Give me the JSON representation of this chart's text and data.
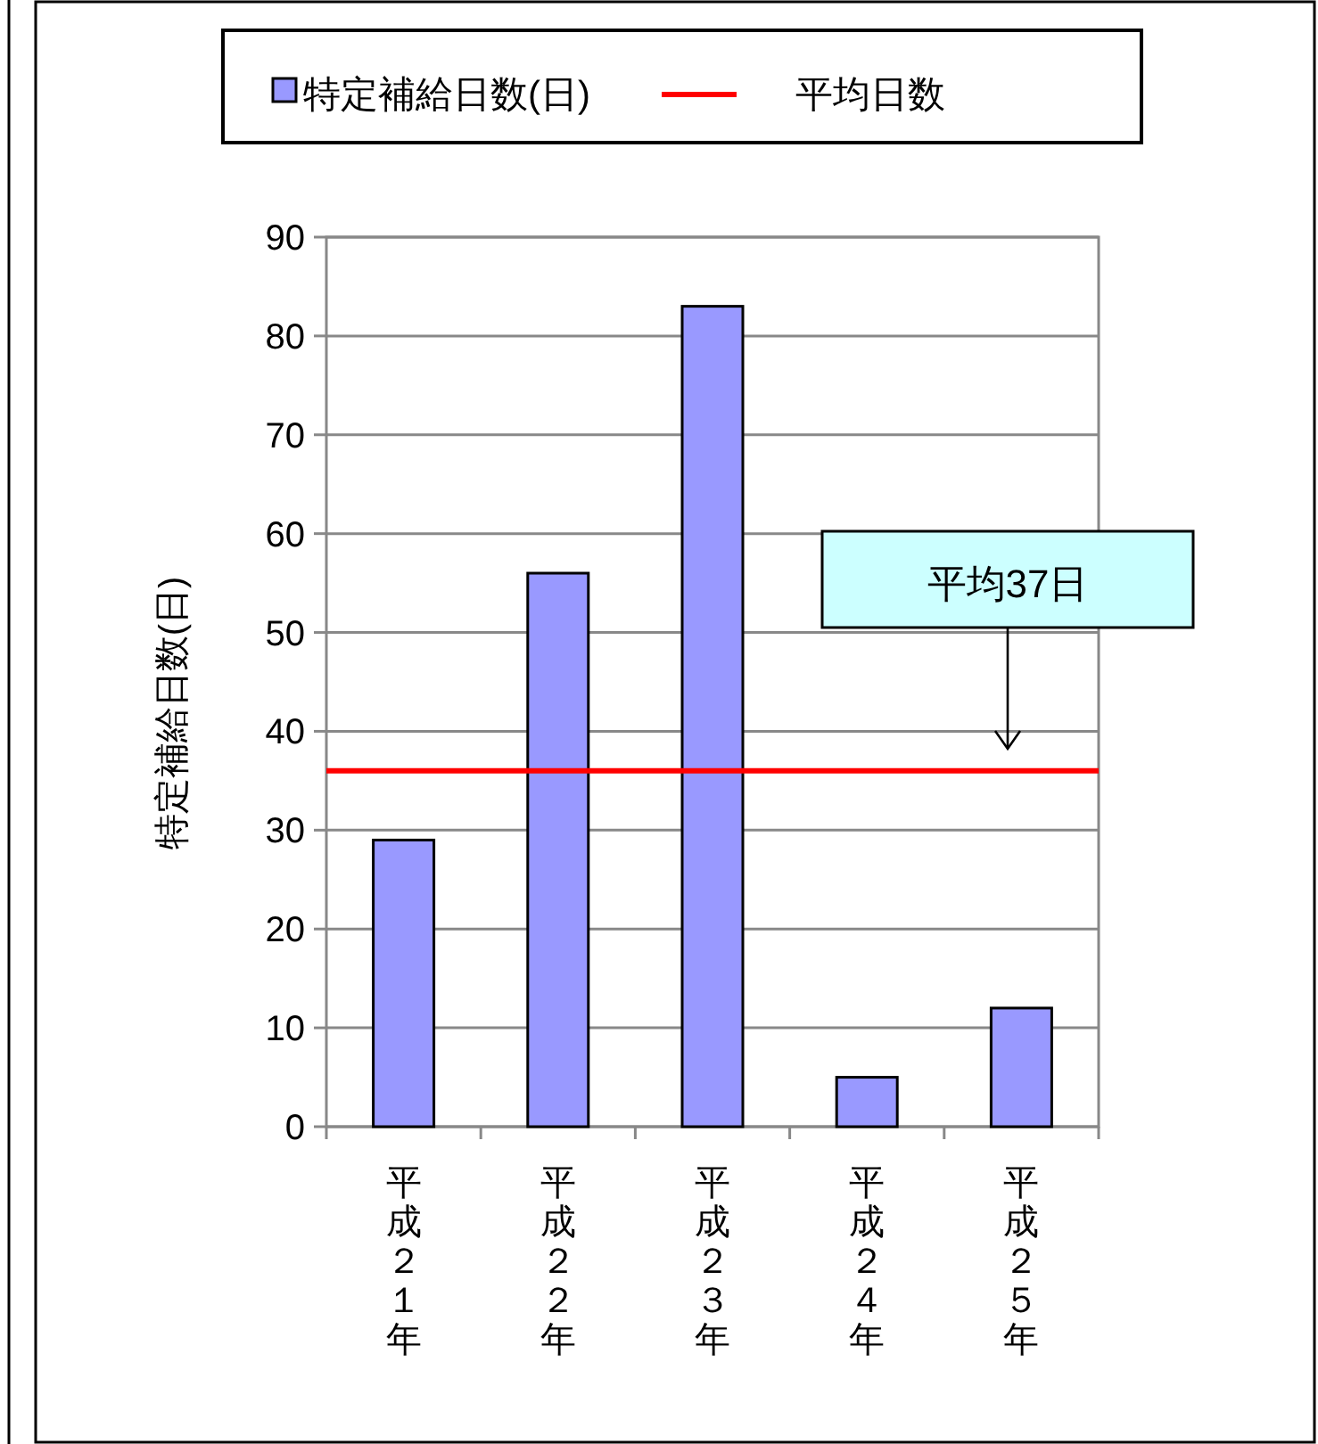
{
  "chart_data": {
    "type": "bar",
    "categories": [
      "平成２１年",
      "平成２２年",
      "平成２３年",
      "平成２４年",
      "平成２５年"
    ],
    "series": [
      {
        "name": "特定補給日数(日)",
        "color": "#9999ff",
        "values": [
          29,
          56,
          83,
          5,
          12
        ]
      }
    ],
    "ylabel": "特定補給日数(日)",
    "ylim": [
      0,
      90
    ],
    "yticks": [
      0,
      10,
      20,
      30,
      40,
      50,
      60,
      70,
      80,
      90
    ],
    "grid": "y",
    "legend": "top",
    "ref_lines": [
      {
        "axis": "y",
        "value": 36,
        "label": "平均日数",
        "color": "#ff0000"
      }
    ],
    "annotations": [
      "平均37日"
    ]
  }
}
